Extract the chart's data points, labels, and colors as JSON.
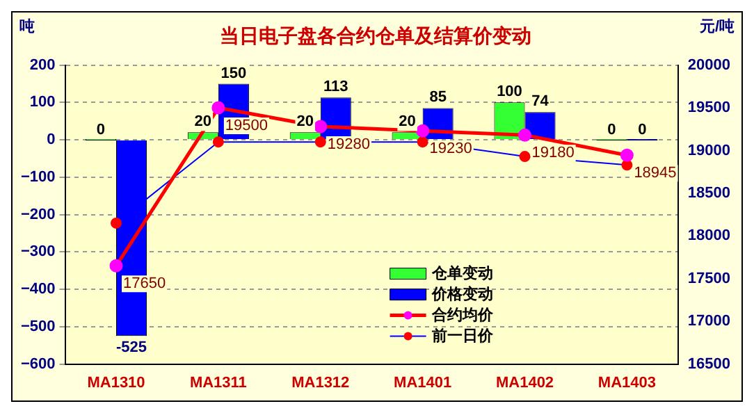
{
  "chart_data": {
    "type": "bar",
    "title": "当日电子盘各合约仓单及结算价变动",
    "ylabel": "吨",
    "y2label": "元/吨",
    "categories": [
      "MA1310",
      "MA1311",
      "MA1312",
      "MA1401",
      "MA1402",
      "MA1403"
    ],
    "series": [
      {
        "name": "仓单变动",
        "color": "#33ff33",
        "values": [
          0,
          20,
          20,
          20,
          100,
          0
        ],
        "value_labels": [
          "0",
          "20",
          "20",
          "20",
          "100",
          "0"
        ]
      },
      {
        "name": "价格变动",
        "color": "#0000ff",
        "values": [
          -525,
          150,
          113,
          85,
          74,
          0
        ],
        "value_labels": [
          "-525",
          "150",
          "113",
          "85",
          "74",
          "0"
        ]
      },
      {
        "name": "合约均价",
        "type": "line",
        "axis": "y2",
        "color": "#ff0000",
        "values": [
          17650,
          19500,
          19280,
          19230,
          19180,
          18945
        ],
        "value_labels": [
          "17650",
          "19500",
          "19280",
          "19230",
          "19180",
          "18945"
        ]
      },
      {
        "name": "前一日价",
        "type": "line",
        "axis": "y2",
        "color": "#0000ff",
        "values": [
          18150,
          19100,
          19100,
          19100,
          18930,
          18830
        ]
      }
    ],
    "ylim": [
      -600,
      200
    ],
    "yticks": [
      -600,
      -500,
      -400,
      -300,
      -200,
      -100,
      0,
      100,
      200
    ],
    "y2lim": [
      16500,
      20000
    ],
    "y2ticks": [
      16500,
      17000,
      17500,
      18000,
      18500,
      19000,
      19500,
      20000
    ],
    "grid": "y",
    "legend": "bottom",
    "marker": "circle"
  }
}
